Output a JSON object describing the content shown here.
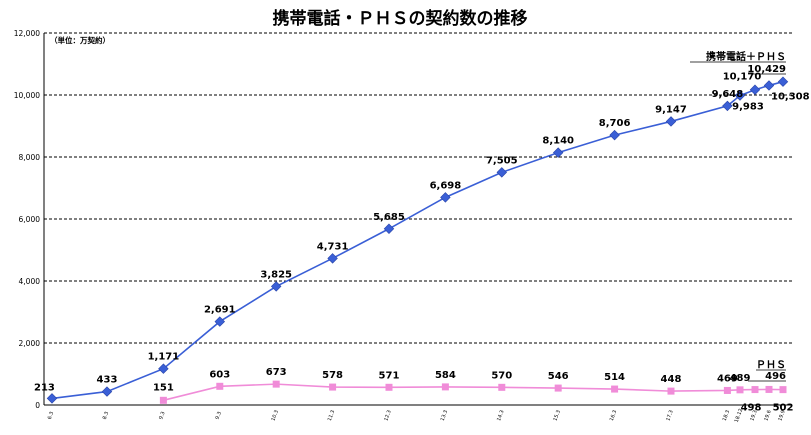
{
  "chart_data": {
    "type": "line",
    "title": "携帯電話・ＰＨＳの契約数の推移",
    "unit_note": "（単位：万契約）",
    "ylim": [
      0,
      12000
    ],
    "yticks": [
      "0",
      "2,000",
      "4,000",
      "6,000",
      "8,000",
      "10,000",
      "12,000"
    ],
    "grid": true,
    "categories": [
      "6.3",
      "8.3",
      "9.3",
      "9.3",
      "10.3",
      "11.3",
      "12.3",
      "13.3",
      "14.3",
      "15.3",
      "16.3",
      "17.3",
      "18.3",
      "18.12",
      "19.3",
      "19.6",
      "19.9"
    ],
    "legend_labels": [
      {
        "text": "携帯電話＋ＰＨＳ",
        "value": "10,429"
      },
      {
        "text": "ＰＨＳ",
        "value": "496"
      }
    ],
    "series": [
      {
        "color": "#3a5fd6",
        "marker": "diamond",
        "values": [
          213,
          433,
          1171,
          2691,
          3825,
          4731,
          5685,
          6698,
          7505,
          8140,
          8706,
          9147,
          9648,
          9983,
          10170,
          10308,
          10429
        ],
        "labels": [
          "213",
          "433",
          "1,171",
          "2,691",
          "3,825",
          "4,731",
          "5,685",
          "6,698",
          "7,505",
          "8,140",
          "8,706",
          "9,147",
          "9,648",
          "9,983",
          "10,170",
          "10,308",
          ""
        ]
      },
      {
        "color": "#f08cd8",
        "marker": "square",
        "values": [
          null,
          null,
          151,
          603,
          673,
          578,
          571,
          584,
          570,
          546,
          514,
          448,
          469,
          489,
          498,
          502,
          496
        ],
        "labels": [
          "",
          "",
          "151",
          "603",
          "673",
          "578",
          "571",
          "584",
          "570",
          "546",
          "514",
          "448",
          "469",
          "489",
          "498",
          "502",
          ""
        ]
      }
    ]
  }
}
